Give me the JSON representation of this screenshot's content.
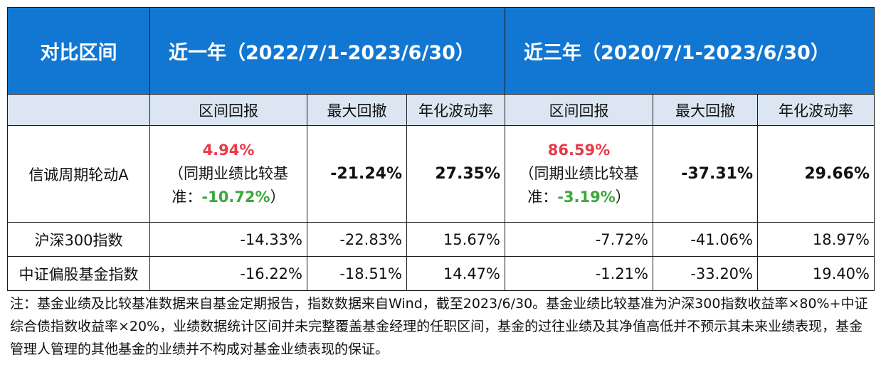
{
  "header": {
    "col_label": "对比区间",
    "period1": "近一年（2022/7/1-2023/6/30）",
    "period2": "近三年（2020/7/1-2023/6/30）"
  },
  "subheader": {
    "p1": [
      "区间回报",
      "最大回撤",
      "年化波动率"
    ],
    "p2": [
      "区间回报",
      "最大回撤",
      "年化波动率"
    ]
  },
  "fund": {
    "name": "信诚周期轮动A",
    "p1": {
      "return": "4.94%",
      "bench_prefix": "（同期业绩比较基准：",
      "bench_value": "-10.72%",
      "bench_suffix": "）",
      "drawdown": "-21.24%",
      "volatility": "27.35%"
    },
    "p2": {
      "return": "86.59%",
      "bench_prefix": "（同期业绩比较基准：",
      "bench_value": "-3.19%",
      "bench_suffix": "）",
      "drawdown": "-37.31%",
      "volatility": "29.66%"
    }
  },
  "indices": [
    {
      "name": "沪深300指数",
      "values": [
        "-14.33%",
        "-22.83%",
        "15.67%",
        "-7.72%",
        "-41.06%",
        "18.97%"
      ]
    },
    {
      "name": "中证偏股基金指数",
      "values": [
        "-16.22%",
        "-18.51%",
        "14.47%",
        "-1.21%",
        "-33.20%",
        "19.40%"
      ]
    }
  ],
  "note": "注：基金业绩及比较基准数据来自基金定期报告，指数数据来自Wind，截至2023/6/30。基金业绩比较基准为沪深300指数收益率×80%+中证综合债指数收益率×20%，业绩数据统计区间并未完整覆盖基金经理的任职区间，基金的过往业绩及其净值高低并不预示其未来业绩表现，基金管理人管理的其他基金的业绩并不构成对基金业绩表现的保证。",
  "colors": {
    "header_bg": "#1177d2",
    "subheader_bg": "#dbe6f2",
    "positive": "#e8394a",
    "negative": "#3aa83a"
  }
}
